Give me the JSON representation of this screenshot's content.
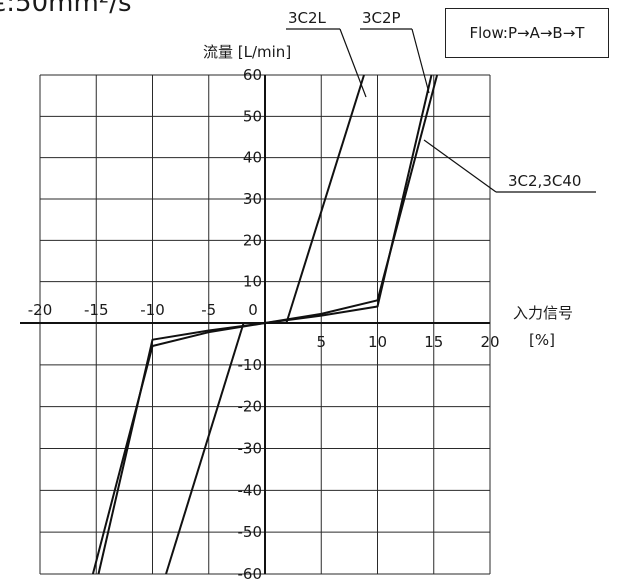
{
  "header_fragment": "є:50mm²/s",
  "flow_note": "Flow:P→A→B→T",
  "chart_data": {
    "type": "line",
    "title": "",
    "xlabel": "入力信号",
    "xlabel_unit": "[%]",
    "ylabel": "流量 [L/min]",
    "xlim": [
      -20,
      20
    ],
    "ylim": [
      -60,
      60
    ],
    "grid": true,
    "x_ticks": [
      -20,
      -15,
      -10,
      -5,
      0,
      5,
      10,
      15,
      20
    ],
    "x_tick_labels": [
      "-20",
      "-15",
      "-10",
      "-5",
      "0",
      "5",
      "10",
      "15",
      "20"
    ],
    "y_ticks": [
      60,
      50,
      40,
      30,
      20,
      10,
      -10,
      -20,
      -30,
      -40,
      -50,
      -60
    ],
    "y_tick_labels": [
      "60",
      "50",
      "40",
      "30",
      "20",
      "10",
      "-10",
      "-20",
      "-30",
      "-40",
      "-50",
      "-60"
    ],
    "series": [
      {
        "name": "3C2L",
        "x": [
          -8.8,
          -1.9
        ],
        "y": [
          -60,
          0
        ]
      },
      {
        "name": "3C2L",
        "x": [
          1.9,
          8.8
        ],
        "y": [
          0,
          60
        ]
      },
      {
        "name": "3C2P",
        "x": [
          -14.8,
          -10,
          -5,
          0,
          5,
          10,
          14.8
        ],
        "y": [
          -60,
          -4,
          -1.8,
          0,
          1.8,
          4,
          60
        ]
      },
      {
        "name": "3C2,3C40",
        "x": [
          -15.3,
          -10,
          -5,
          0,
          5,
          10,
          15.3
        ],
        "y": [
          -60,
          -5.5,
          -2.2,
          0,
          2.2,
          5.5,
          60
        ]
      }
    ],
    "labels": {
      "l_3c2l": "3C2L",
      "l_3c2p": "3C2P",
      "l_3c40": "3C2,3C40"
    }
  }
}
